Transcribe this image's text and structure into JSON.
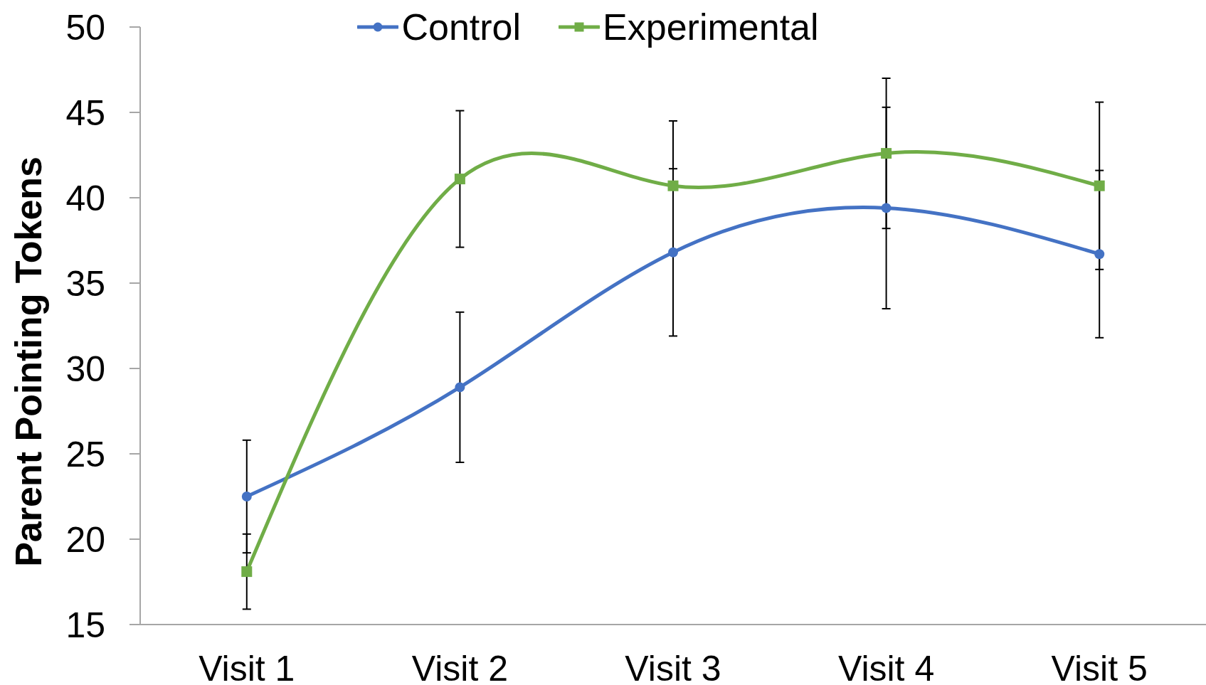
{
  "chart_data": {
    "type": "line",
    "ylabel": "Parent Pointing Tokens",
    "categories": [
      "Visit 1",
      "Visit 2",
      "Visit 3",
      "Visit 4",
      "Visit 5"
    ],
    "series": [
      {
        "name": "Control",
        "color": "#4472c4",
        "marker": "circle",
        "values": [
          22.5,
          28.9,
          36.8,
          39.4,
          36.7
        ],
        "errors": [
          3.3,
          4.4,
          4.9,
          5.9,
          4.9
        ]
      },
      {
        "name": "Experimental",
        "color": "#70ad47",
        "marker": "square",
        "values": [
          18.1,
          41.1,
          40.7,
          42.6,
          40.7
        ],
        "errors": [
          2.2,
          4.0,
          3.8,
          4.4,
          4.9
        ]
      }
    ],
    "ylim": [
      15,
      50
    ],
    "yticks": [
      15,
      20,
      25,
      30,
      35,
      40,
      45,
      50
    ],
    "legend": "top",
    "line_style": "solid"
  }
}
